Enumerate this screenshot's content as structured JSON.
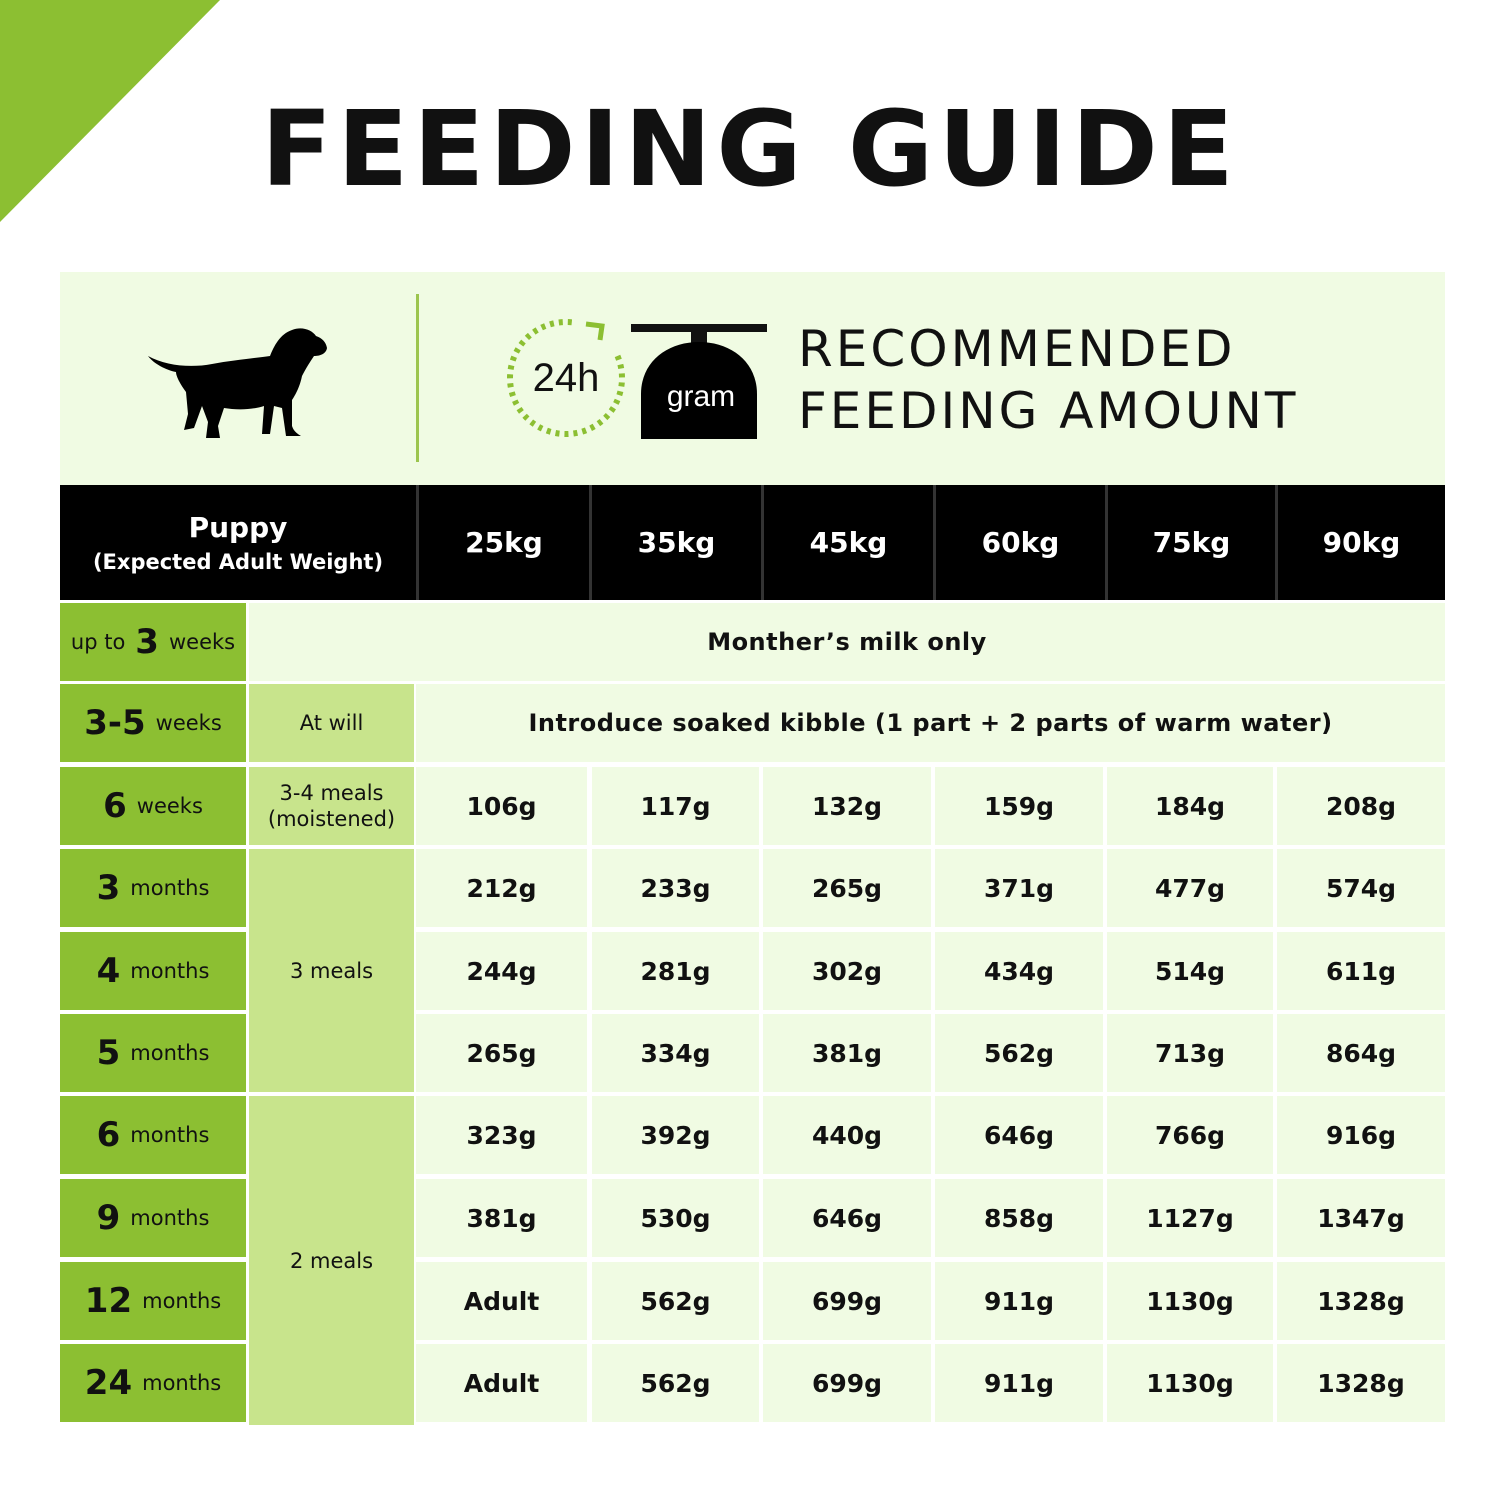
{
  "title": "FEEDING GUIDE",
  "colors": {
    "accent": "#8cbf32",
    "light_green": "#c8e48c",
    "pale_green": "#f0fbe3",
    "header_black": "#000000"
  },
  "icons": [
    "dog-silhouette-icon",
    "clock-24h-icon",
    "gram-scale-icon"
  ],
  "banner": {
    "clock_label": "24h",
    "scale_label": "gram",
    "heading_line1": "RECOMMENDED",
    "heading_line2": "FEEDING AMOUNT"
  },
  "table": {
    "header_first_line1": "Puppy",
    "header_first_line2": "(Expected Adult Weight)",
    "weights": [
      "25kg",
      "35kg",
      "45kg",
      "60kg",
      "75kg",
      "90kg"
    ],
    "ages": [
      {
        "prefix": "up to",
        "num": "3",
        "unit": "weeks"
      },
      {
        "num": "3-5",
        "unit": "weeks"
      },
      {
        "num": "6",
        "unit": "weeks"
      },
      {
        "num": "3",
        "unit": "months"
      },
      {
        "num": "4",
        "unit": "months"
      },
      {
        "num": "5",
        "unit": "months"
      },
      {
        "num": "6",
        "unit": "months"
      },
      {
        "num": "9",
        "unit": "months"
      },
      {
        "num": "12",
        "unit": "months"
      },
      {
        "num": "24",
        "unit": "months"
      }
    ],
    "meals": {
      "at_will": "At will",
      "three_four_line1": "3-4 meals",
      "three_four_line2": "(moistened)",
      "three": "3 meals",
      "two": "2 meals"
    },
    "milk_only": "Monther’s milk only",
    "soaked_note": "Introduce soaked kibble (1 part + 2 parts of warm water)",
    "rows": [
      [
        "106g",
        "117g",
        "132g",
        "159g",
        "184g",
        "208g"
      ],
      [
        "212g",
        "233g",
        "265g",
        "371g",
        "477g",
        "574g"
      ],
      [
        "244g",
        "281g",
        "302g",
        "434g",
        "514g",
        "611g"
      ],
      [
        "265g",
        "334g",
        "381g",
        "562g",
        "713g",
        "864g"
      ],
      [
        "323g",
        "392g",
        "440g",
        "646g",
        "766g",
        "916g"
      ],
      [
        "381g",
        "530g",
        "646g",
        "858g",
        "1127g",
        "1347g"
      ],
      [
        "Adult",
        "562g",
        "699g",
        "911g",
        "1130g",
        "1328g"
      ],
      [
        "Adult",
        "562g",
        "699g",
        "911g",
        "1130g",
        "1328g"
      ]
    ]
  }
}
